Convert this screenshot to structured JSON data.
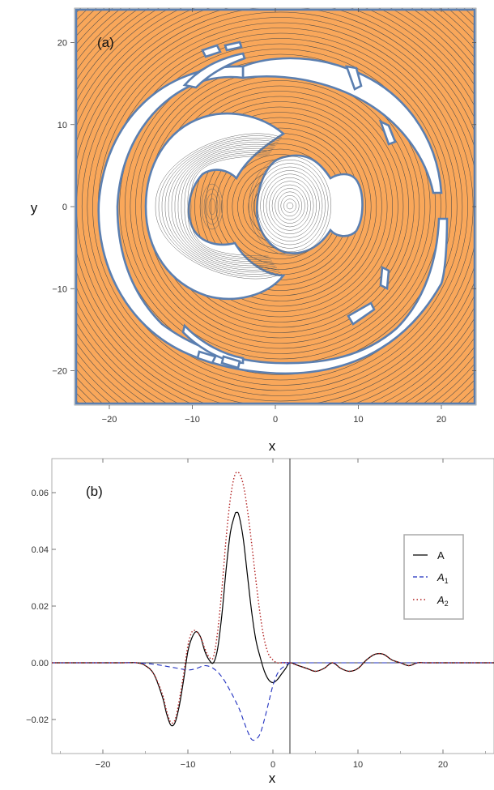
{
  "chart_data": [
    {
      "type": "contour",
      "panel_label": "(a)",
      "xlabel": "x",
      "ylabel": "y",
      "xlim": [
        -24,
        24
      ],
      "ylim": [
        -24,
        24
      ],
      "xticks": [
        -20,
        -10,
        0,
        10,
        20
      ],
      "yticks": [
        -20,
        -10,
        0,
        10,
        20
      ],
      "xtick_labels": [
        "−20",
        "−10",
        "0",
        "10",
        "20"
      ],
      "ytick_labels": [
        "−20",
        "−10",
        "0",
        "10",
        "20"
      ],
      "fill_color": "#f9a75a",
      "region_color": "#ffffff",
      "boundary_color": "#5b7fb0",
      "contour_color": "#444444"
    },
    {
      "type": "line",
      "panel_label": "(b)",
      "xlabel": "x",
      "ylabel": "",
      "xlim": [
        -26,
        26
      ],
      "ylim": [
        -0.032,
        0.072
      ],
      "xticks": [
        -20,
        -10,
        0,
        10,
        20
      ],
      "yticks": [
        -0.02,
        0.0,
        0.02,
        0.04,
        0.06
      ],
      "xtick_labels": [
        "−20",
        "−10",
        "0",
        "10",
        "20"
      ],
      "ytick_labels": [
        "−0.02",
        "0.00",
        "0.02",
        "0.04",
        "0.06"
      ],
      "vline_x": 2,
      "legend": {
        "position": "right",
        "entries": [
          {
            "name": "A",
            "sub": "",
            "color": "#000000",
            "style": "solid"
          },
          {
            "name": "A",
            "sub": "1",
            "color": "#1f2fbf",
            "style": "dashed"
          },
          {
            "name": "A",
            "sub": "2",
            "color": "#b22222",
            "style": "dotted"
          }
        ]
      },
      "series": [
        {
          "key": "A",
          "x": [
            -26,
            -18,
            -16,
            -15,
            -14,
            -13,
            -12.5,
            -12,
            -11.5,
            -11,
            -10.5,
            -10,
            -9.5,
            -9,
            -8.5,
            -8,
            -7.5,
            -7,
            -6.5,
            -6,
            -5.5,
            -5,
            -4.5,
            -4.3,
            -4,
            -3.5,
            -3,
            -2.5,
            -2,
            -1.5,
            -1,
            -0.5,
            0,
            0.5,
            1,
            1.5,
            2,
            3,
            4,
            5,
            6,
            7,
            8,
            9,
            10,
            11,
            12,
            13,
            14,
            15,
            16,
            17,
            18,
            20,
            22,
            26
          ],
          "y": [
            0,
            0,
            0,
            -0.001,
            -0.004,
            -0.012,
            -0.018,
            -0.022,
            -0.021,
            -0.015,
            -0.006,
            0.004,
            0.009,
            0.011,
            0.009,
            0.004,
            0.001,
            0.0,
            0.005,
            0.017,
            0.033,
            0.046,
            0.052,
            0.053,
            0.052,
            0.044,
            0.031,
            0.018,
            0.008,
            0.002,
            -0.003,
            -0.006,
            -0.007,
            -0.006,
            -0.004,
            -0.002,
            0.0,
            -0.001,
            -0.002,
            -0.003,
            -0.002,
            0.0,
            -0.002,
            -0.003,
            -0.002,
            0.001,
            0.003,
            0.003,
            0.001,
            0.0,
            -0.001,
            0.0,
            0.0,
            0.0,
            0.0,
            0
          ]
        },
        {
          "key": "A1",
          "x": [
            -26,
            -18,
            -16,
            -14,
            -12,
            -10,
            -9,
            -8,
            -7,
            -6,
            -5,
            -4,
            -3.5,
            -3,
            -2.5,
            -2,
            -1.5,
            -1,
            -0.5,
            0,
            0.5,
            1,
            1.5,
            2,
            3,
            26
          ],
          "y": [
            0,
            0,
            0,
            -0.0005,
            -0.0015,
            -0.0025,
            -0.002,
            -0.001,
            -0.002,
            -0.005,
            -0.01,
            -0.016,
            -0.02,
            -0.024,
            -0.027,
            -0.027,
            -0.025,
            -0.02,
            -0.014,
            -0.008,
            -0.004,
            -0.002,
            -0.001,
            0,
            0,
            0
          ]
        },
        {
          "key": "A2",
          "x": [
            -26,
            -18,
            -16,
            -15,
            -14,
            -13,
            -12.5,
            -12,
            -11.5,
            -11,
            -10.5,
            -10,
            -9.5,
            -9,
            -8.5,
            -8,
            -7.5,
            -7,
            -6.5,
            -6,
            -5.5,
            -5,
            -4.5,
            -4,
            -3.5,
            -3,
            -2.5,
            -2,
            -1.5,
            -1,
            -0.5,
            0,
            0.5,
            1,
            1.5,
            2,
            3,
            4,
            5,
            6,
            7,
            8,
            9,
            10,
            11,
            12,
            13,
            14,
            15,
            16,
            17,
            18,
            20,
            22,
            26
          ],
          "y": [
            0,
            0,
            0,
            -0.001,
            -0.004,
            -0.011,
            -0.017,
            -0.021,
            -0.02,
            -0.013,
            -0.004,
            0.006,
            0.011,
            0.011,
            0.009,
            0.005,
            0.002,
            0.002,
            0.011,
            0.026,
            0.044,
            0.058,
            0.066,
            0.067,
            0.063,
            0.054,
            0.042,
            0.029,
            0.017,
            0.008,
            0.003,
            0.001,
            0.0,
            0.0,
            0.0,
            0.0,
            -0.001,
            -0.002,
            -0.003,
            -0.002,
            0.0,
            -0.002,
            -0.003,
            -0.002,
            0.001,
            0.003,
            0.003,
            0.001,
            0.0,
            -0.001,
            0.0,
            0.0,
            0.0,
            0.0,
            0
          ]
        }
      ]
    }
  ]
}
